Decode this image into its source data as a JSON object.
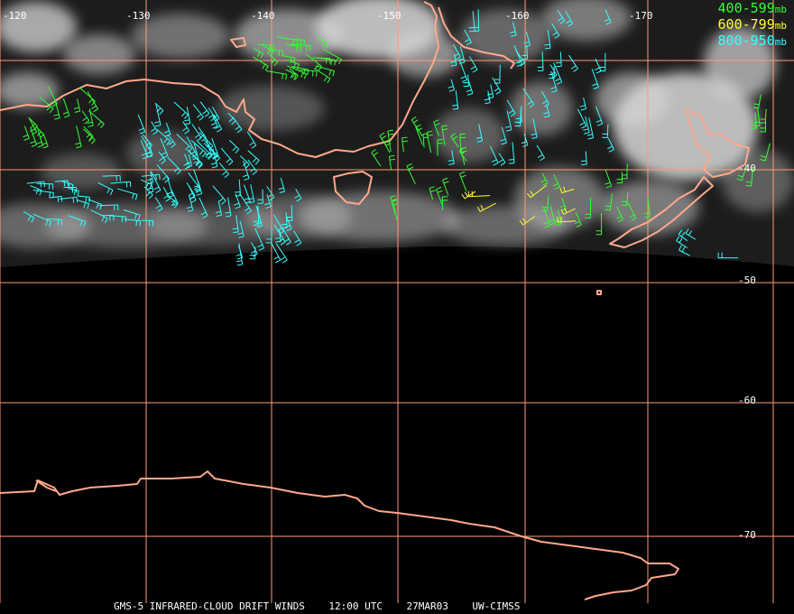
{
  "map": {
    "background_color": "#000000",
    "grid_color": "#ff9a78",
    "coast_color": "#ffa88c",
    "cloud_color": "#d8d8d8",
    "longitude_labels": [
      "-120",
      "-130",
      "-140",
      "-150",
      "-160",
      "-170"
    ],
    "latitude_labels": [
      "-40",
      "-50",
      "-60",
      "-70"
    ],
    "legend": [
      {
        "range": "400-599",
        "unit": "mb",
        "color": "#33ff33"
      },
      {
        "range": "600-799",
        "unit": "mb",
        "color": "#ffff33"
      },
      {
        "range": "800-950",
        "unit": "mb",
        "color": "#33ffff"
      }
    ],
    "footer": {
      "satellite_product": "GMS-5 INFRARED-CLOUD DRIFT WINDS",
      "time": "12:00 UTC",
      "date": "27MAR03",
      "source": "UW-CIMSS"
    }
  }
}
